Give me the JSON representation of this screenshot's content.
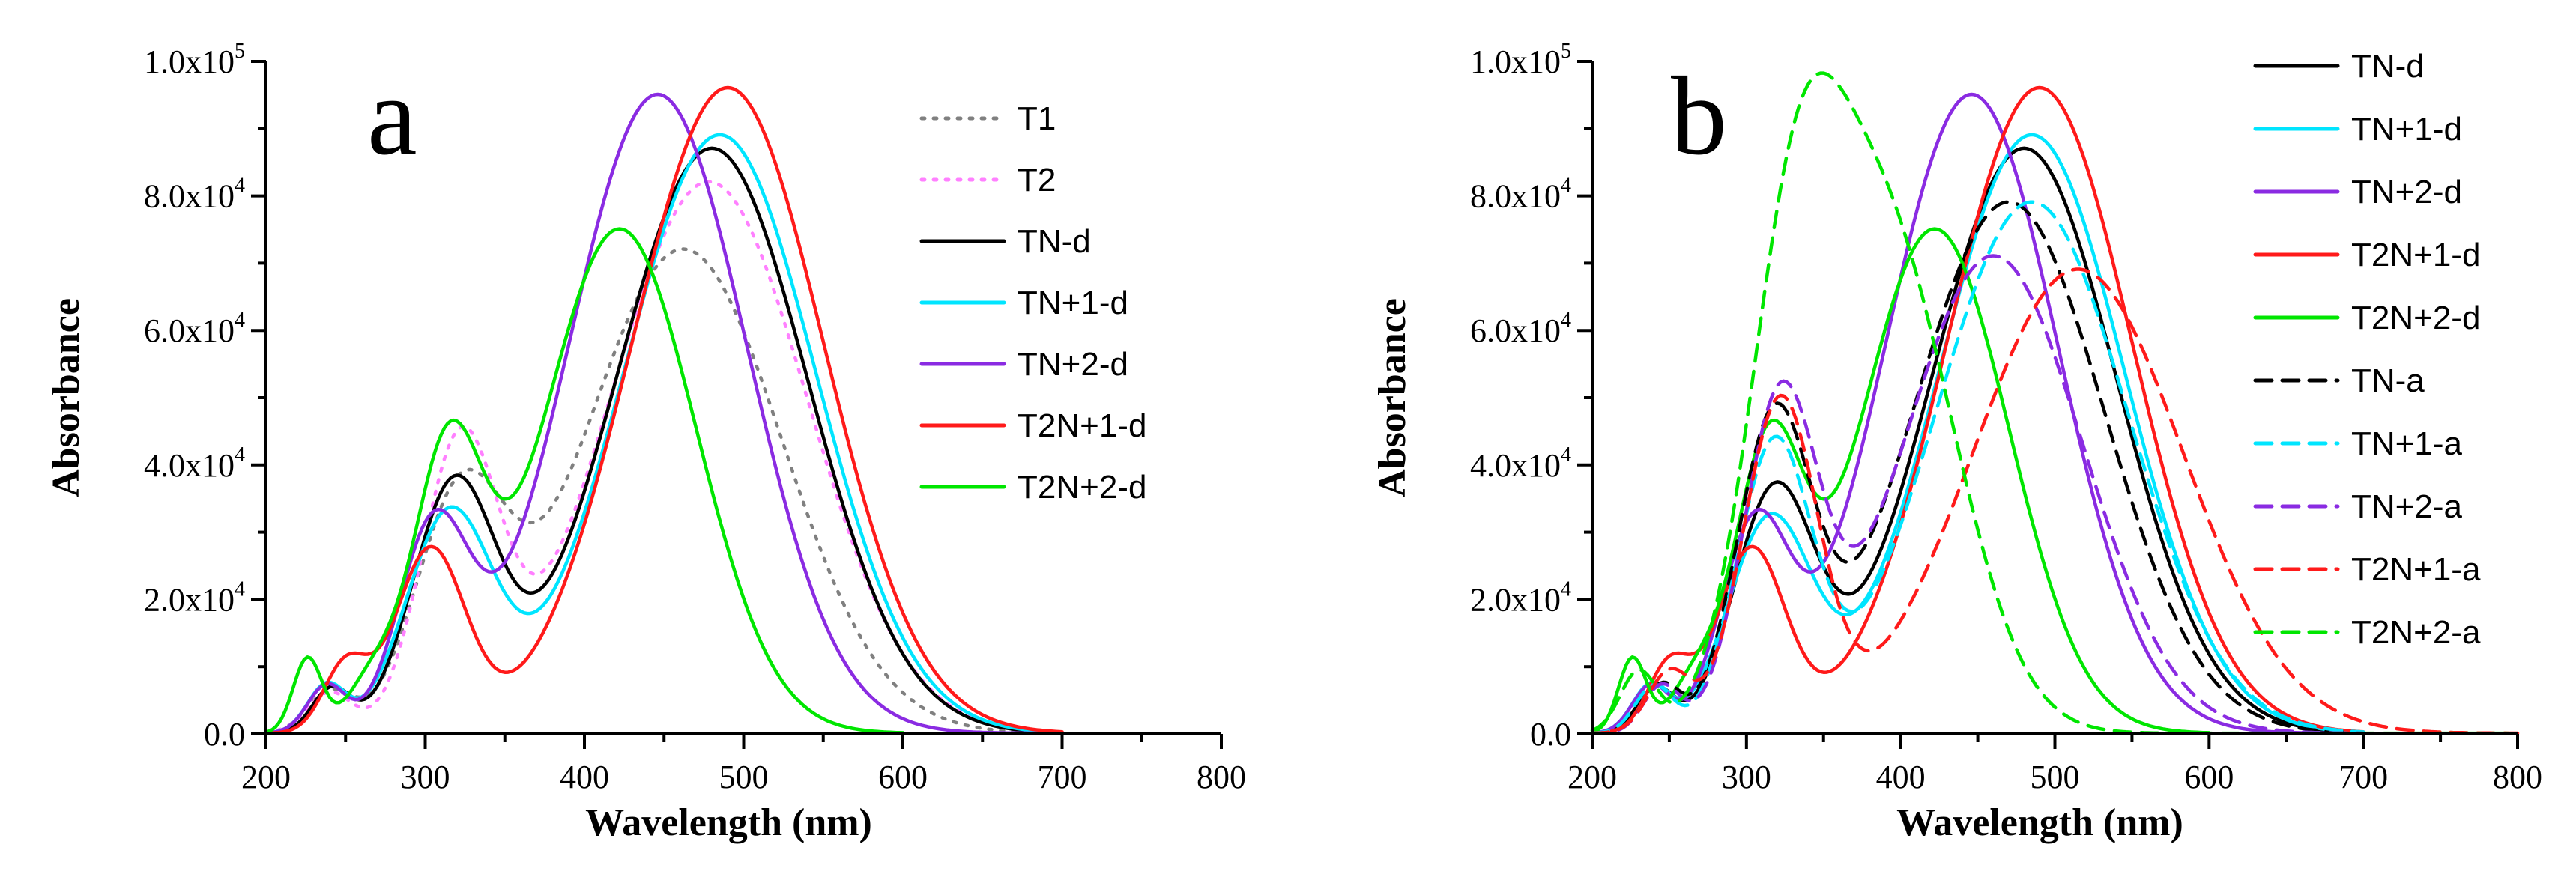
{
  "chart_data": [
    {
      "type": "line",
      "panel": "a",
      "xlabel": "Wavelength (nm)",
      "ylabel": "Absorbance",
      "xlim": [
        200,
        800
      ],
      "ylim": [
        0,
        100000
      ],
      "xticks": [
        200,
        300,
        400,
        500,
        600,
        700,
        800
      ],
      "yticks": [
        {
          "value": 0,
          "mant": "0.0",
          "exp": ""
        },
        {
          "value": 20000,
          "mant": "2.0x10",
          "exp": "4"
        },
        {
          "value": 40000,
          "mant": "4.0x10",
          "exp": "4"
        },
        {
          "value": 60000,
          "mant": "6.0x10",
          "exp": "4"
        },
        {
          "value": 80000,
          "mant": "8.0x10",
          "exp": "4"
        },
        {
          "value": 100000,
          "mant": "1.0x10",
          "exp": "5"
        }
      ],
      "legend_position": "top-right",
      "series": [
        {
          "name": "T1",
          "color": "#808080",
          "dash": "dot",
          "end": 700,
          "base": 100,
          "bands": [
            [
              240,
              6000,
              14
            ],
            [
              322,
              33000,
              28
            ],
            [
              462,
              72000,
              62
            ]
          ]
        },
        {
          "name": "T2",
          "color": "#ff80ff",
          "dash": "dot",
          "end": 700,
          "base": 100,
          "bands": [
            [
              240,
              6000,
              14
            ],
            [
              322,
              42000,
              24
            ],
            [
              478,
              82000,
              62
            ]
          ]
        },
        {
          "name": "TN-d",
          "color": "#000000",
          "dash": "solid",
          "end": 700,
          "base": 100,
          "bands": [
            [
              241,
              6500,
              12
            ],
            [
              318,
              36000,
              26
            ],
            [
              480,
              87000,
              60
            ]
          ]
        },
        {
          "name": "TN+1-d",
          "color": "#00e5ff",
          "dash": "solid",
          "end": 700,
          "base": 100,
          "bands": [
            [
              238,
              7000,
              12
            ],
            [
              315,
              32000,
              27
            ],
            [
              485,
              89000,
              60
            ]
          ]
        },
        {
          "name": "TN+2-d",
          "color": "#8a2be2",
          "dash": "solid",
          "end": 700,
          "base": 100,
          "bands": [
            [
              238,
              7000,
              12
            ],
            [
              305,
              29000,
              22
            ],
            [
              446,
              95000,
              56
            ]
          ]
        },
        {
          "name": "T2N+1-d",
          "color": "#ff1a1a",
          "dash": "solid",
          "end": 700,
          "base": 100,
          "bands": [
            [
              250,
              10000,
              14
            ],
            [
              303,
              27000,
              22
            ],
            [
              490,
              96000,
              60
            ]
          ]
        },
        {
          "name": "T2N+2-d",
          "color": "#00e600",
          "dash": "solid",
          "end": 600,
          "base": 100,
          "bands": [
            [
              226,
              11000,
              9
            ],
            [
              266,
              7000,
              16
            ],
            [
              314,
              40000,
              22
            ],
            [
              422,
              75000,
              48
            ]
          ]
        }
      ]
    },
    {
      "type": "line",
      "panel": "b",
      "xlabel": "Wavelength (nm)",
      "ylabel": "Absorbance",
      "xlim": [
        200,
        800
      ],
      "ylim": [
        0,
        100000
      ],
      "xticks": [
        200,
        300,
        400,
        500,
        600,
        700,
        800
      ],
      "yticks": [
        {
          "value": 0,
          "mant": "0.0",
          "exp": ""
        },
        {
          "value": 20000,
          "mant": "2.0x10",
          "exp": "4"
        },
        {
          "value": 40000,
          "mant": "4.0x10",
          "exp": "4"
        },
        {
          "value": 60000,
          "mant": "6.0x10",
          "exp": "4"
        },
        {
          "value": 80000,
          "mant": "8.0x10",
          "exp": "4"
        },
        {
          "value": 100000,
          "mant": "1.0x10",
          "exp": "5"
        }
      ],
      "legend_position": "top-right",
      "series": [
        {
          "name": "TN-d",
          "color": "#000000",
          "dash": "solid",
          "end": 700,
          "base": 100,
          "bands": [
            [
              241,
              6500,
              12
            ],
            [
              318,
              35000,
              26
            ],
            [
              480,
              87000,
              60
            ]
          ]
        },
        {
          "name": "TN+1-d",
          "color": "#00e5ff",
          "dash": "solid",
          "end": 700,
          "base": 100,
          "bands": [
            [
              238,
              7000,
              12
            ],
            [
              315,
              31000,
              27
            ],
            [
              485,
              89000,
              60
            ]
          ]
        },
        {
          "name": "TN+2-d",
          "color": "#8a2be2",
          "dash": "solid",
          "end": 700,
          "base": 100,
          "bands": [
            [
              238,
              7000,
              12
            ],
            [
              305,
              29000,
              22
            ],
            [
              446,
              95000,
              56
            ]
          ]
        },
        {
          "name": "T2N+1-d",
          "color": "#ff1a1a",
          "dash": "solid",
          "end": 700,
          "base": 100,
          "bands": [
            [
              250,
              10000,
              14
            ],
            [
              303,
              27000,
              22
            ],
            [
              490,
              96000,
              60
            ]
          ]
        },
        {
          "name": "T2N+2-d",
          "color": "#00e600",
          "dash": "solid",
          "end": 600,
          "base": 100,
          "bands": [
            [
              226,
              11000,
              9
            ],
            [
              266,
              7000,
              16
            ],
            [
              314,
              40000,
              22
            ],
            [
              422,
              75000,
              48
            ]
          ]
        },
        {
          "name": "TN-a",
          "color": "#000000",
          "dash": "dash",
          "end": 700,
          "base": 100,
          "bands": [
            [
              245,
              7000,
              12
            ],
            [
              318,
              45000,
              24
            ],
            [
              470,
              79000,
              62
            ]
          ]
        },
        {
          "name": "TN+1-a",
          "color": "#00e5ff",
          "dash": "dash",
          "end": 700,
          "base": 100,
          "bands": [
            [
              240,
              7000,
              12
            ],
            [
              318,
              42000,
              24
            ],
            [
              485,
              79000,
              62
            ]
          ]
        },
        {
          "name": "TN+2-a",
          "color": "#8a2be2",
          "dash": "dash",
          "end": 700,
          "base": 100,
          "bands": [
            [
              245,
              7000,
              12
            ],
            [
              322,
              48000,
              24
            ],
            [
              460,
              71000,
              58
            ]
          ]
        },
        {
          "name": "T2N+1-a",
          "color": "#ff1a1a",
          "dash": "dash",
          "end": 800,
          "base": 100,
          "bands": [
            [
              250,
              9000,
              14
            ],
            [
              322,
              49000,
              24
            ],
            [
              515,
              69000,
              68
            ]
          ]
        },
        {
          "name": "T2N+2-a",
          "color": "#00e600",
          "dash": "dash",
          "end": 800,
          "base": 100,
          "bands": [
            [
              230,
              9000,
              12
            ],
            [
              330,
              56000,
              30
            ],
            [
              388,
              75000,
              46
            ]
          ]
        }
      ]
    }
  ]
}
